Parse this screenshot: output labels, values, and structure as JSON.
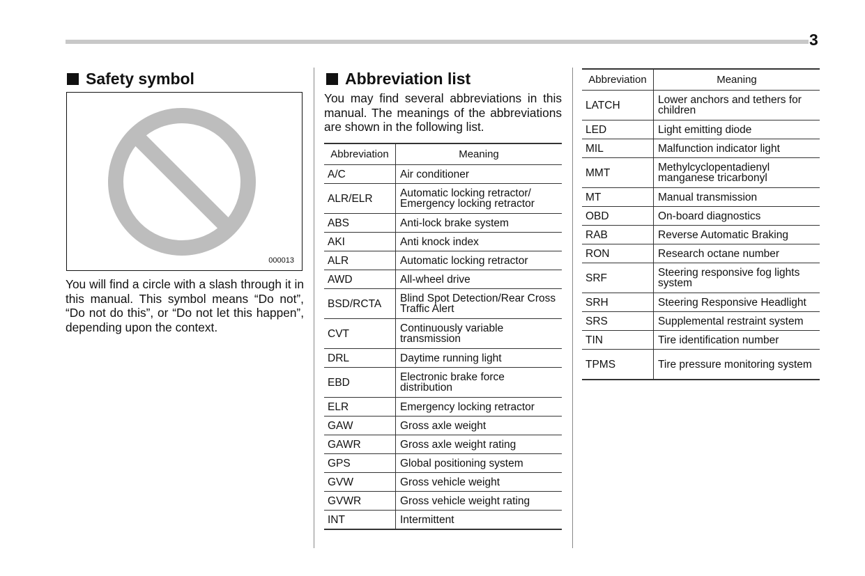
{
  "page_number": "3",
  "safety": {
    "title": "Safety symbol",
    "figure_code": "000013",
    "text": "You will find a circle with a slash through it in this manual. This symbol means “Do not”, “Do not do this”, or “Do not let this happen”, depending upon the context."
  },
  "abbrev": {
    "title": "Abbreviation list",
    "intro": "You may find several abbreviations in this manual. The meanings of the abbreviations are shown in the following list.",
    "headers": [
      "Abbreviation",
      "Meaning"
    ],
    "table1": [
      [
        "A/C",
        "Air conditioner"
      ],
      [
        "ALR/ELR",
        "Automatic locking retractor/ Emergency locking retractor"
      ],
      [
        "ABS",
        "Anti-lock brake system"
      ],
      [
        "AKI",
        "Anti knock index"
      ],
      [
        "ALR",
        "Automatic locking retractor"
      ],
      [
        "AWD",
        "All-wheel drive"
      ],
      [
        "BSD/RCTA",
        "Blind Spot Detection/Rear Cross Traffic Alert"
      ],
      [
        "CVT",
        "Continuously variable transmission"
      ],
      [
        "DRL",
        "Daytime running light"
      ],
      [
        "EBD",
        "Electronic brake force distribution"
      ],
      [
        "ELR",
        "Emergency locking retractor"
      ],
      [
        "GAW",
        "Gross axle weight"
      ],
      [
        "GAWR",
        "Gross axle weight rating"
      ],
      [
        "GPS",
        "Global positioning system"
      ],
      [
        "GVW",
        "Gross vehicle weight"
      ],
      [
        "GVWR",
        "Gross vehicle weight rating"
      ],
      [
        "INT",
        "Intermittent"
      ]
    ],
    "table2": [
      [
        "LATCH",
        "Lower anchors and tethers for children"
      ],
      [
        "LED",
        "Light emitting diode"
      ],
      [
        "MIL",
        "Malfunction indicator light"
      ],
      [
        "MMT",
        "Methylcyclopentadienyl manganese tricarbonyl"
      ],
      [
        "MT",
        "Manual transmission"
      ],
      [
        "OBD",
        "On-board diagnostics"
      ],
      [
        "RAB",
        "Reverse Automatic Braking"
      ],
      [
        "RON",
        "Research octane number"
      ],
      [
        "SRF",
        "Steering responsive fog lights system"
      ],
      [
        "SRH",
        "Steering Responsive Headlight"
      ],
      [
        "SRS",
        "Supplemental restraint system"
      ],
      [
        "TIN",
        "Tire identification number"
      ],
      [
        "TPMS",
        "Tire pressure monitoring system"
      ]
    ]
  }
}
